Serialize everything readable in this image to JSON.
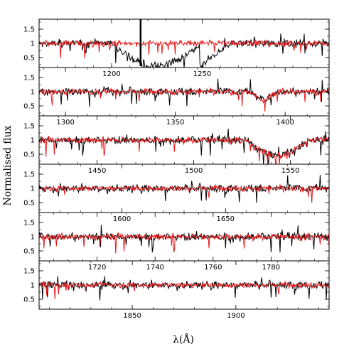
{
  "chart_data": {
    "type": "line",
    "xlabel": "λ(Å)",
    "ylabel": "Normalised flux",
    "colors": {
      "black_series": "#000000",
      "red_series": "#e8191c"
    },
    "series": [
      {
        "description_color": "black"
      },
      {
        "description_color": "red"
      }
    ],
    "panels": [
      {
        "xlim": [
          1160,
          1320
        ],
        "ylim": [
          0.15,
          1.85
        ],
        "ytick_values": [
          0.5,
          1,
          1.5
        ],
        "ytick_labels": [
          "0.5",
          "1",
          "1.5"
        ],
        "xtick_values": [
          1200,
          1250
        ],
        "xtick_labels": [
          "1200",
          "1250"
        ],
        "features": {
          "black_trough": [
            1200,
            1265,
            0.2
          ],
          "black_spike": [
            1216,
            2.0
          ]
        }
      },
      {
        "xlim": [
          1288,
          1420
        ],
        "ylim": [
          0.15,
          1.85
        ],
        "ytick_values": [
          0.5,
          1,
          1.5
        ],
        "ytick_labels": [
          "0.5",
          "1",
          "1.5"
        ],
        "xtick_values": [
          1300,
          1350,
          1400
        ],
        "xtick_labels": [
          "1300",
          "1350",
          "1400"
        ],
        "features": {
          "dip": [
            1390,
            0.7
          ]
        }
      },
      {
        "xlim": [
          1420,
          1570
        ],
        "ylim": [
          0.15,
          1.85
        ],
        "ytick_values": [
          0.5,
          1,
          1.5
        ],
        "ytick_labels": [
          "0.5",
          "1",
          "1.5"
        ],
        "xtick_values": [
          1450,
          1500,
          1550
        ],
        "xtick_labels": [
          "1450",
          "1500",
          "1550"
        ],
        "features": {
          "trough": [
            1535,
            1555,
            0.45
          ]
        }
      },
      {
        "xlim": [
          1560,
          1700
        ],
        "ylim": [
          0.15,
          1.85
        ],
        "ytick_values": [
          0.5,
          1,
          1.5
        ],
        "ytick_labels": [
          "0.5",
          "1",
          "1.5"
        ],
        "xtick_values": [
          1600,
          1650
        ],
        "xtick_labels": [
          "1600",
          "1650"
        ],
        "features": {}
      },
      {
        "xlim": [
          1700,
          1800
        ],
        "ylim": [
          0.15,
          1.85
        ],
        "ytick_values": [
          0.5,
          1,
          1.5
        ],
        "ytick_labels": [
          "0.5",
          "1",
          "1.5"
        ],
        "xtick_values": [
          1720,
          1740,
          1760,
          1780
        ],
        "xtick_labels": [
          "1720",
          "1740",
          "1760",
          "1780"
        ],
        "features": {}
      },
      {
        "xlim": [
          1805,
          1945
        ],
        "ylim": [
          0.15,
          1.85
        ],
        "ytick_values": [
          0.5,
          1,
          1.5
        ],
        "ytick_labels": [
          "0.5",
          "1",
          "1.5"
        ],
        "xtick_values": [
          1850,
          1900
        ],
        "xtick_labels": [
          "1850",
          "1900"
        ],
        "features": {}
      }
    ]
  }
}
